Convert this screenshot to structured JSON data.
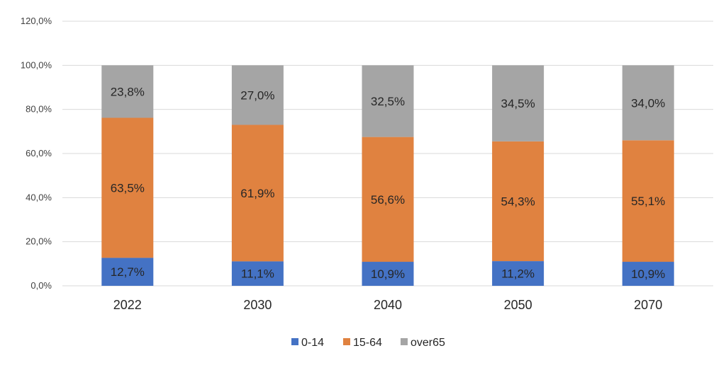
{
  "chart_data": {
    "type": "bar",
    "stacked": true,
    "categories": [
      "2022",
      "2030",
      "2040",
      "2050",
      "2070"
    ],
    "series": [
      {
        "name": "0-14",
        "color": "#4472C4",
        "values": [
          12.7,
          11.1,
          10.9,
          11.2,
          10.9
        ],
        "labels": [
          "12,7%",
          "11,1%",
          "10,9%",
          "11,2%",
          "10,9%"
        ]
      },
      {
        "name": "15-64",
        "color": "#E08240",
        "values": [
          63.5,
          61.9,
          56.6,
          54.3,
          55.1
        ],
        "labels": [
          "63,5%",
          "61,9%",
          "56,6%",
          "54,3%",
          "55,1%"
        ]
      },
      {
        "name": "over65",
        "color": "#A5A5A5",
        "values": [
          23.8,
          27.0,
          32.5,
          34.5,
          34.0
        ],
        "labels": [
          "23,8%",
          "27,0%",
          "32,5%",
          "34,5%",
          "34,0%"
        ]
      }
    ],
    "ylim": [
      0,
      120
    ],
    "yticks": [
      0,
      20,
      40,
      60,
      80,
      100,
      120
    ],
    "ytick_labels": [
      "0,0%",
      "20,0%",
      "40,0%",
      "60,0%",
      "80,0%",
      "100,0%",
      "120,0%"
    ],
    "grid": true,
    "legend_position": "bottom"
  }
}
